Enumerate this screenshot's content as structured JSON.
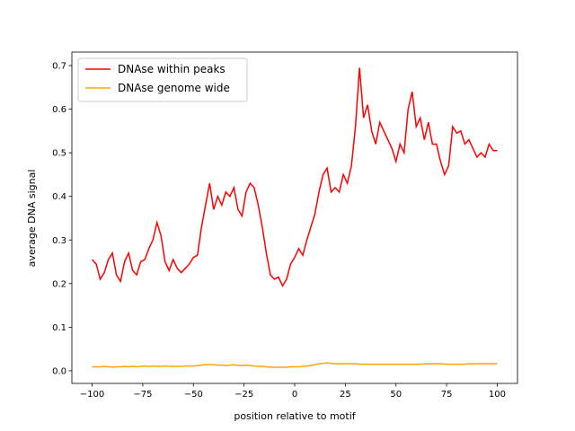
{
  "chart_data": {
    "type": "line",
    "xlabel": "position relative to motif",
    "ylabel": "average DNA signal",
    "x": [
      -100,
      -98,
      -96,
      -94,
      -92,
      -90,
      -88,
      -86,
      -84,
      -82,
      -80,
      -78,
      -76,
      -74,
      -72,
      -70,
      -68,
      -66,
      -64,
      -62,
      -60,
      -58,
      -56,
      -54,
      -52,
      -50,
      -48,
      -46,
      -44,
      -42,
      -40,
      -38,
      -36,
      -34,
      -32,
      -30,
      -28,
      -26,
      -24,
      -22,
      -20,
      -18,
      -16,
      -14,
      -12,
      -10,
      -8,
      -6,
      -4,
      -2,
      0,
      2,
      4,
      6,
      8,
      10,
      12,
      14,
      16,
      18,
      20,
      22,
      24,
      26,
      28,
      30,
      32,
      34,
      36,
      38,
      40,
      42,
      44,
      46,
      48,
      50,
      52,
      54,
      56,
      58,
      60,
      62,
      64,
      66,
      68,
      70,
      72,
      74,
      76,
      78,
      80,
      82,
      84,
      86,
      88,
      90,
      92,
      94,
      96,
      98,
      100
    ],
    "series": [
      {
        "name": "DNAse within peaks",
        "color": "#ff0000",
        "values": [
          0.255,
          0.245,
          0.21,
          0.225,
          0.255,
          0.27,
          0.22,
          0.205,
          0.25,
          0.27,
          0.23,
          0.22,
          0.25,
          0.255,
          0.28,
          0.3,
          0.34,
          0.31,
          0.25,
          0.23,
          0.255,
          0.235,
          0.225,
          0.235,
          0.245,
          0.26,
          0.265,
          0.33,
          0.38,
          0.43,
          0.37,
          0.4,
          0.38,
          0.41,
          0.4,
          0.42,
          0.37,
          0.355,
          0.41,
          0.43,
          0.42,
          0.38,
          0.33,
          0.27,
          0.22,
          0.21,
          0.215,
          0.195,
          0.21,
          0.245,
          0.26,
          0.28,
          0.265,
          0.3,
          0.33,
          0.36,
          0.41,
          0.45,
          0.465,
          0.41,
          0.42,
          0.41,
          0.45,
          0.43,
          0.47,
          0.56,
          0.695,
          0.58,
          0.61,
          0.55,
          0.52,
          0.57,
          0.55,
          0.53,
          0.51,
          0.48,
          0.52,
          0.5,
          0.6,
          0.64,
          0.56,
          0.58,
          0.53,
          0.57,
          0.52,
          0.52,
          0.48,
          0.45,
          0.47,
          0.56,
          0.545,
          0.55,
          0.52,
          0.53,
          0.51,
          0.49,
          0.5,
          0.49,
          0.52,
          0.505,
          0.505
        ]
      },
      {
        "name": "DNAse genome wide",
        "color": "#ffa500",
        "values": [
          0.009,
          0.009,
          0.009,
          0.01,
          0.009,
          0.008,
          0.009,
          0.009,
          0.01,
          0.009,
          0.01,
          0.009,
          0.01,
          0.011,
          0.01,
          0.011,
          0.01,
          0.01,
          0.011,
          0.01,
          0.01,
          0.01,
          0.01,
          0.011,
          0.011,
          0.011,
          0.012,
          0.013,
          0.014,
          0.014,
          0.014,
          0.013,
          0.013,
          0.012,
          0.013,
          0.014,
          0.012,
          0.012,
          0.013,
          0.012,
          0.011,
          0.01,
          0.01,
          0.009,
          0.008,
          0.008,
          0.008,
          0.008,
          0.008,
          0.009,
          0.009,
          0.009,
          0.01,
          0.011,
          0.012,
          0.014,
          0.016,
          0.017,
          0.018,
          0.017,
          0.016,
          0.016,
          0.016,
          0.016,
          0.016,
          0.016,
          0.015,
          0.015,
          0.015,
          0.015,
          0.015,
          0.015,
          0.015,
          0.015,
          0.015,
          0.015,
          0.015,
          0.015,
          0.015,
          0.015,
          0.015,
          0.015,
          0.016,
          0.016,
          0.016,
          0.016,
          0.016,
          0.015,
          0.015,
          0.015,
          0.015,
          0.015,
          0.015,
          0.016,
          0.016,
          0.016,
          0.016,
          0.016,
          0.016,
          0.016,
          0.016
        ]
      }
    ],
    "xlim": [
      -110,
      110
    ],
    "xticks": [
      {
        "value": -100,
        "label": "−100"
      },
      {
        "value": -75,
        "label": "−75"
      },
      {
        "value": -50,
        "label": "−50"
      },
      {
        "value": -25,
        "label": "−25"
      },
      0,
      25,
      50,
      75,
      100
    ],
    "ylim": [
      -0.029,
      0.731
    ],
    "yticks": [
      {
        "value": 0,
        "label": "0.0"
      },
      0.1,
      0.2,
      0.3,
      0.4,
      0.5,
      0.6,
      0.7
    ],
    "legend": "upper left"
  }
}
